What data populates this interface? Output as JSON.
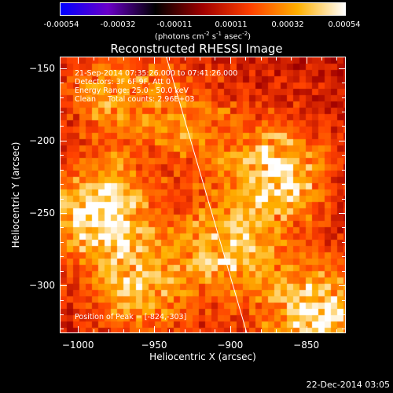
{
  "colorbar": {
    "ticks": [
      "-0.00054",
      "-0.00032",
      "-0.00011",
      "0.00011",
      "0.00032",
      "0.00054"
    ],
    "units": {
      "prefix": "(photons cm",
      "exp1": "-2",
      "mid1": " s",
      "exp2": "-1",
      "mid2": " asec",
      "exp3": "-2",
      "suffix": ")"
    },
    "colors": [
      "#0000ff",
      "#6a00c8",
      "#000000",
      "#a00000",
      "#ff4000",
      "#ffb000",
      "#ffffff"
    ]
  },
  "chart_data": {
    "type": "heatmap",
    "title": "Reconstructed RHESSI Image",
    "xlabel": "Heliocentric X (arcsec)",
    "ylabel": "Heliocentric Y (arcsec)",
    "xlim": [
      -1012,
      -824
    ],
    "ylim": [
      -333,
      -142
    ],
    "xticks": [
      -1000,
      -950,
      -900,
      -850
    ],
    "yticks": [
      -150,
      -200,
      -250,
      -300
    ],
    "value_range": [
      -0.00054,
      0.00054
    ],
    "peak": [
      -824,
      -303
    ],
    "limb_line": {
      "x": [
        -942,
        -889
      ],
      "y": [
        -142,
        -333
      ]
    }
  },
  "annotations": {
    "time": "21-Sep-2014 07:35:26.000 to 07:41:26.000",
    "detectors": "Detectors: 3F 6F 9F, Att 0",
    "energy": "Energy Range: 25.0 - 50.0 keV",
    "clean": "Clean     Total counts: 2.96E+03",
    "peak": "Position of Peak = [-824,-303]"
  },
  "footer": {
    "date": "22-Dec-2014 03:05"
  }
}
